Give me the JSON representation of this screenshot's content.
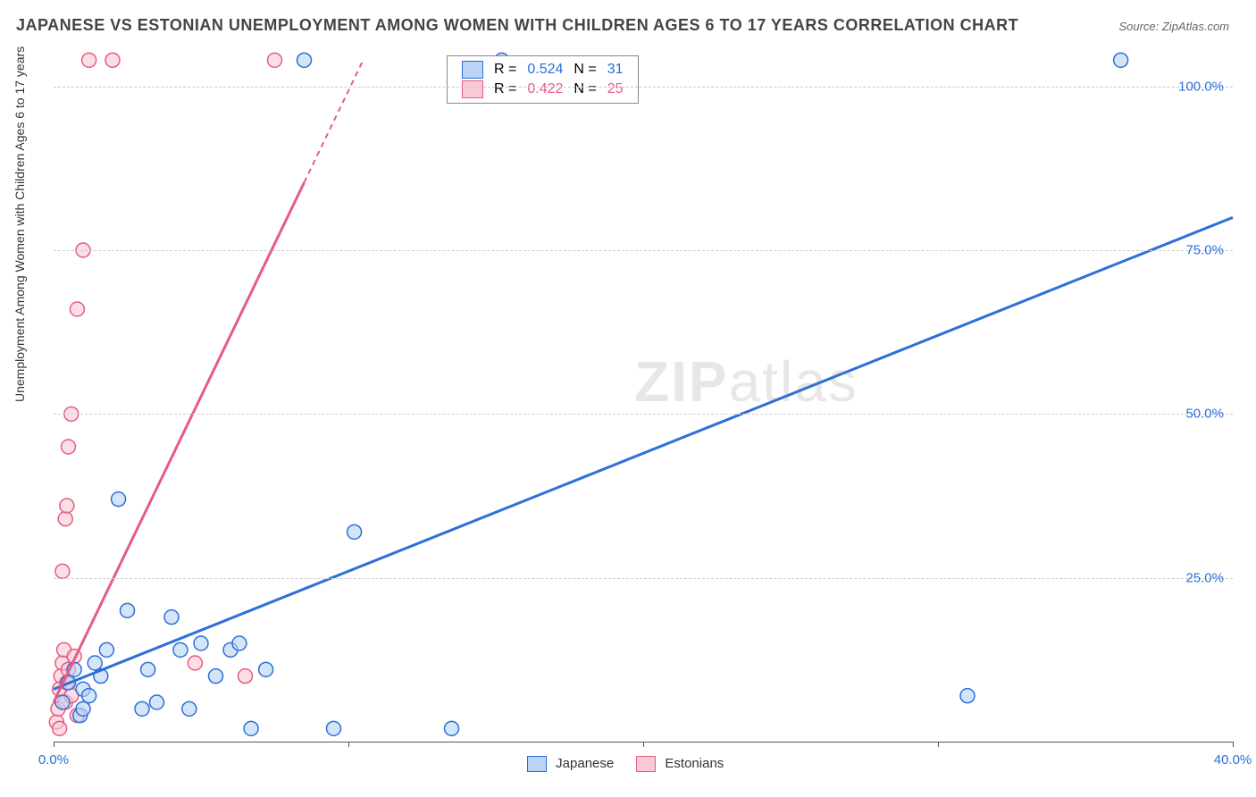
{
  "title": "JAPANESE VS ESTONIAN UNEMPLOYMENT AMONG WOMEN WITH CHILDREN AGES 6 TO 17 YEARS CORRELATION CHART",
  "source": "Source: ZipAtlas.com",
  "y_axis_label": "Unemployment Among Women with Children Ages 6 to 17 years",
  "watermark": {
    "bold": "ZIP",
    "rest": "atlas"
  },
  "colors": {
    "japanese_fill": "#b9d4f4",
    "japanese_stroke": "#2b6fd9",
    "estonian_fill": "#f9c9d4",
    "estonian_stroke": "#e85a82",
    "grid": "#cccccc",
    "axis": "#555555",
    "title": "#444444",
    "y_tick_text": "#2b6fd9",
    "x_tick_text": "#2b6fd9",
    "bg": "#ffffff"
  },
  "chart": {
    "type": "scatter",
    "xlim": [
      0,
      40
    ],
    "ylim": [
      0,
      105
    ],
    "x_ticks": [
      0,
      10,
      20,
      30,
      40
    ],
    "x_tick_labels": [
      "0.0%",
      "",
      "",
      "",
      "40.0%"
    ],
    "y_ticks": [
      25,
      50,
      75,
      100
    ],
    "y_tick_labels": [
      "25.0%",
      "50.0%",
      "75.0%",
      "100.0%"
    ],
    "marker_radius": 8,
    "line_width_solid": 3,
    "line_width_dash": 2
  },
  "legend_top": {
    "rows": [
      {
        "swatch": "japanese",
        "r_label": "R =",
        "r_val": "0.524",
        "n_label": "N =",
        "n_val": "31"
      },
      {
        "swatch": "estonian",
        "r_label": "R =",
        "r_val": "0.422",
        "n_label": "N =",
        "n_val": "25"
      }
    ]
  },
  "legend_bottom": {
    "items": [
      {
        "swatch": "japanese",
        "label": "Japanese"
      },
      {
        "swatch": "estonian",
        "label": "Estonians"
      }
    ]
  },
  "trend_lines": {
    "japanese": {
      "x1": 0,
      "y1": 8,
      "x2": 40,
      "y2": 80,
      "dash_from_x": null
    },
    "estonian": {
      "x1": 0,
      "y1": 6,
      "x2": 10.5,
      "y2": 104,
      "dash_from_x": 8.5
    }
  },
  "series": {
    "japanese": [
      {
        "x": 0.3,
        "y": 6
      },
      {
        "x": 0.5,
        "y": 9
      },
      {
        "x": 0.7,
        "y": 11
      },
      {
        "x": 0.9,
        "y": 4
      },
      {
        "x": 1.0,
        "y": 8
      },
      {
        "x": 1.2,
        "y": 7
      },
      {
        "x": 1.4,
        "y": 12
      },
      {
        "x": 1.6,
        "y": 10
      },
      {
        "x": 1.8,
        "y": 14
      },
      {
        "x": 2.2,
        "y": 37
      },
      {
        "x": 2.5,
        "y": 20
      },
      {
        "x": 3.0,
        "y": 5
      },
      {
        "x": 3.2,
        "y": 11
      },
      {
        "x": 3.5,
        "y": 6
      },
      {
        "x": 4.0,
        "y": 19
      },
      {
        "x": 4.3,
        "y": 14
      },
      {
        "x": 4.6,
        "y": 5
      },
      {
        "x": 5.0,
        "y": 15
      },
      {
        "x": 5.5,
        "y": 10
      },
      {
        "x": 6.0,
        "y": 14
      },
      {
        "x": 6.3,
        "y": 15
      },
      {
        "x": 6.7,
        "y": 2
      },
      {
        "x": 7.2,
        "y": 11
      },
      {
        "x": 8.5,
        "y": 104
      },
      {
        "x": 9.5,
        "y": 2
      },
      {
        "x": 10.2,
        "y": 32
      },
      {
        "x": 13.5,
        "y": 2
      },
      {
        "x": 15.2,
        "y": 104
      },
      {
        "x": 31.0,
        "y": 7
      },
      {
        "x": 36.2,
        "y": 104
      },
      {
        "x": 1.0,
        "y": 5
      }
    ],
    "estonian": [
      {
        "x": 0.1,
        "y": 3
      },
      {
        "x": 0.15,
        "y": 5
      },
      {
        "x": 0.2,
        "y": 8
      },
      {
        "x": 0.25,
        "y": 10
      },
      {
        "x": 0.3,
        "y": 12
      },
      {
        "x": 0.35,
        "y": 14
      },
      {
        "x": 0.4,
        "y": 6
      },
      {
        "x": 0.45,
        "y": 9
      },
      {
        "x": 0.5,
        "y": 11
      },
      {
        "x": 0.6,
        "y": 7
      },
      {
        "x": 0.7,
        "y": 13
      },
      {
        "x": 0.8,
        "y": 4
      },
      {
        "x": 0.3,
        "y": 26
      },
      {
        "x": 0.4,
        "y": 34
      },
      {
        "x": 0.45,
        "y": 36
      },
      {
        "x": 0.5,
        "y": 45
      },
      {
        "x": 0.6,
        "y": 50
      },
      {
        "x": 0.8,
        "y": 66
      },
      {
        "x": 1.0,
        "y": 75
      },
      {
        "x": 1.2,
        "y": 104
      },
      {
        "x": 2.0,
        "y": 104
      },
      {
        "x": 4.8,
        "y": 12
      },
      {
        "x": 6.5,
        "y": 10
      },
      {
        "x": 7.5,
        "y": 104
      },
      {
        "x": 0.2,
        "y": 2
      }
    ]
  }
}
